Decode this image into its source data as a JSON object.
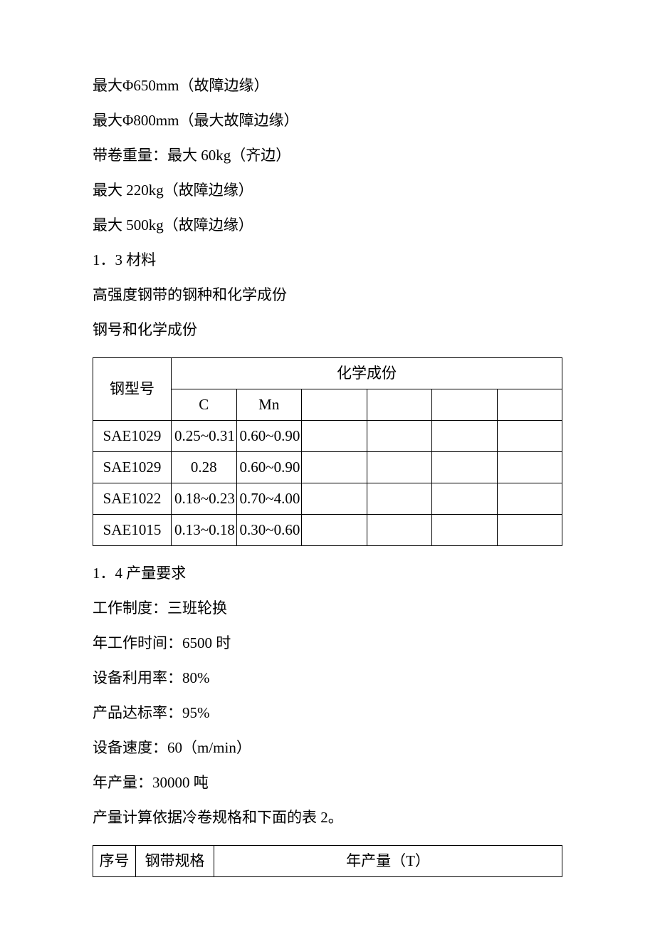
{
  "lines": {
    "l1": "最大Φ650mm（故障边缘）",
    "l2": "最大Φ800mm（最大故障边缘）",
    "l3": "带卷重量：最大 60kg（齐边）",
    "l4": "最大 220kg（故障边缘）",
    "l5": "最大 500kg（故障边缘）",
    "l6": "1．3 材料",
    "l7": "高强度钢带的钢种和化学成份",
    "l8": "钢号和化学成份"
  },
  "table1": {
    "header": {
      "rowLabel": "钢型号",
      "group": "化学成份",
      "col1": "C",
      "col2": "Mn"
    },
    "rows": [
      {
        "type": "SAE1029",
        "c": "0.25~0.31",
        "mn": "0.60~0.90"
      },
      {
        "type": "SAE1029",
        "c": "0.28",
        "mn": "0.60~0.90"
      },
      {
        "type": "SAE1022",
        "c": "0.18~0.23",
        "mn": "0.70~4.00"
      },
      {
        "type": "SAE1015",
        "c": "0.13~0.18",
        "mn": "0.30~0.60"
      }
    ]
  },
  "lines2": {
    "l9": "1．4 产量要求",
    "l10": "工作制度：三班轮换",
    "l11": "年工作时间：6500 时",
    "l12": "设备利用率：80%",
    "l13": "产品达标率：95%",
    "l14": "设备速度：60（m/min）",
    "l15": "年产量：30000 吨",
    "l16": "产量计算依据冷卷规格和下面的表 2。"
  },
  "table2": {
    "header": {
      "seq": "序号",
      "spec": "钢带规格",
      "output": "年产量（T）"
    }
  }
}
